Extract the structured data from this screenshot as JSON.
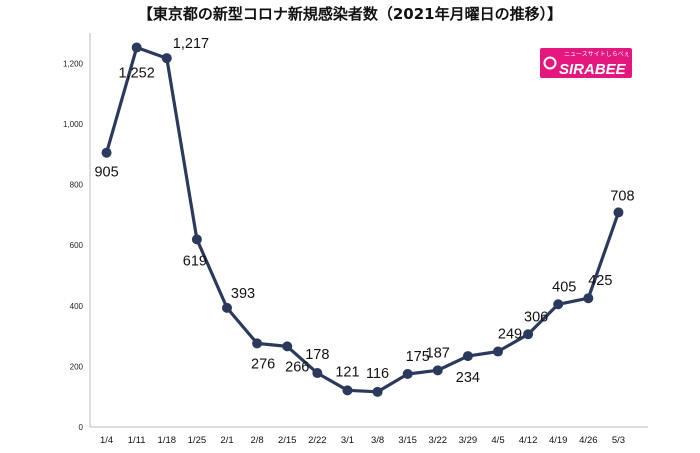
{
  "chart_data": {
    "type": "line",
    "title": "【東京都の新型コロナ新規感染者数（2021年月曜日の推移）】",
    "categories": [
      "1/4",
      "1/11",
      "1/18",
      "1/25",
      "2/1",
      "2/8",
      "2/15",
      "2/22",
      "3/1",
      "3/8",
      "3/15",
      "3/22",
      "3/29",
      "4/5",
      "4/12",
      "4/19",
      "4/26",
      "5/3"
    ],
    "series": [
      {
        "values": [
          905,
          1252,
          1217,
          619,
          393,
          276,
          266,
          178,
          121,
          116,
          175,
          187,
          234,
          249,
          306,
          405,
          425,
          708
        ]
      }
    ],
    "data_labels": [
      "905",
      "1,252",
      "1,217",
      "619",
      "393",
      "276",
      "266",
      "178",
      "121",
      "116",
      "175",
      "187",
      "234",
      "249",
      "306",
      "405",
      "425",
      "708"
    ],
    "ylim": [
      0,
      1300
    ],
    "yticks": [
      0,
      200,
      400,
      600,
      800,
      1000,
      1200
    ],
    "ytick_labels": [
      "0",
      "200",
      "400",
      "600",
      "800",
      "1,000",
      "1,200"
    ],
    "xlabel": "",
    "ylabel": "",
    "grid": false,
    "line_color": "#2b3a5c",
    "axis_color": "#bbbbbb"
  },
  "logo": {
    "tagline": "ニュースサイトしらべぇ",
    "name": "SIRABEE",
    "color": "#e3177d"
  }
}
